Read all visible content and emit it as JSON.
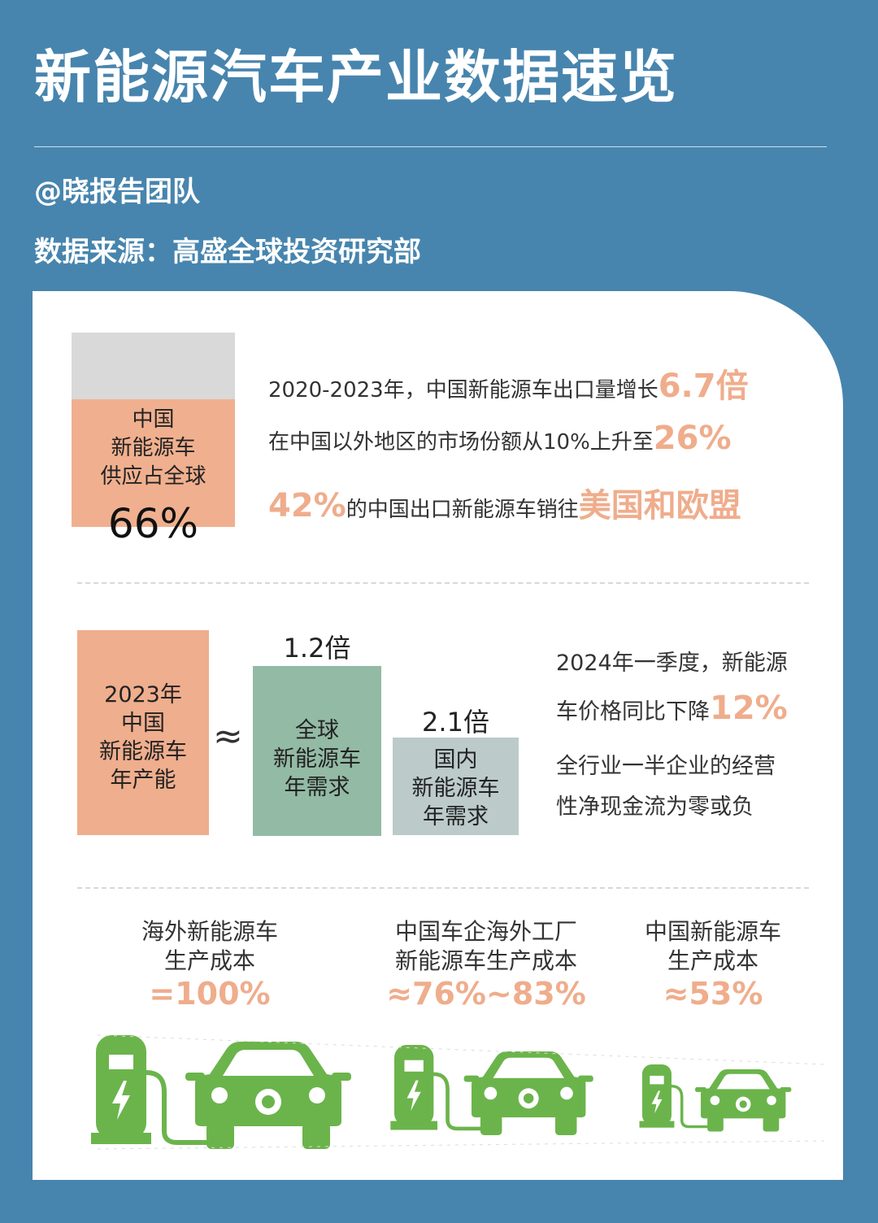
{
  "header": {
    "title": "新能源汽车产业数据速览",
    "author": "@晓报告团队",
    "source": "数据来源：高盛全球投资研究部"
  },
  "supply_share": {
    "label_lines": [
      "中国",
      "新能源车",
      "供应占全球"
    ],
    "value": "66%"
  },
  "export_facts": [
    {
      "pre": "2020-2023年，中国新能源车出口量增长",
      "hl": "6.7倍",
      "post": ""
    },
    {
      "pre": "在中国以外地区的市场份额从10%上升至",
      "hl": "26%",
      "post": ""
    },
    {
      "lead_hl": "42%",
      "pre": "的中国出口新能源车销往",
      "hl": "美国和欧盟"
    }
  ],
  "capacity": {
    "china_lines": [
      "2023年",
      "中国",
      "新能源车",
      "年产能"
    ],
    "approx_symbol": "≈",
    "global_multiplier": "1.2倍",
    "global_lines": [
      "全球",
      "新能源车",
      "年需求"
    ],
    "domestic_multiplier": "2.1倍",
    "domestic_lines": [
      "国内",
      "新能源车",
      "年需求"
    ]
  },
  "price_text": {
    "line1": "2024年一季度，新能源",
    "line2_pre": "车价格同比下降",
    "line2_hl": "12%",
    "line3": "全行业一半企业的经营",
    "line4": "性净现金流为零或负"
  },
  "costs": [
    {
      "lines": [
        "海外新能源车",
        "生产成本"
      ],
      "value": "=100%"
    },
    {
      "lines": [
        "中国车企海外工厂",
        "新能源车生产成本"
      ],
      "value": "≈76%~83%"
    },
    {
      "lines": [
        "中国新能源车",
        "生产成本"
      ],
      "value": "≈53%"
    }
  ],
  "colors": {
    "background": "#4785ae",
    "orange": "#efae8d",
    "green": "#93baa4",
    "gray_green": "#bccaca",
    "icon_green": "#6bb44b"
  },
  "icons": [
    "charging-station-icon",
    "car-icon",
    "lightning-icon"
  ]
}
